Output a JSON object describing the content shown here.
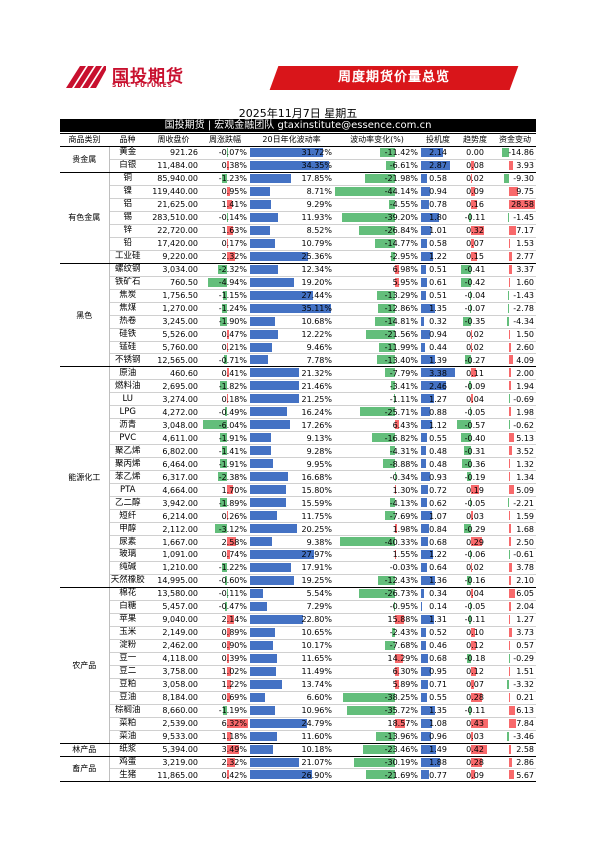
{
  "brand": {
    "name_cn": "国投期货",
    "name_en": "SDIC FUTURES"
  },
  "banner": "周度期货价量总览",
  "date": "2025年11月7日 星期五",
  "subheader": "国投期货 | 宏观金融团队 gtaxinstitute@essence.com.cn",
  "colors": {
    "blue": "#4472c4",
    "green": "#63be7b",
    "red": "#f8696b",
    "header_bg": "#000000",
    "banner": "#d9151a"
  },
  "columns": [
    "商品类别",
    "品种",
    "周收盘价",
    "周涨跌幅",
    "20日年化波动率",
    "波动率变化(%)",
    "投机度",
    "趋势度",
    "资金变动"
  ],
  "categories": [
    {
      "name": "贵金属",
      "rows": [
        [
          "黄金",
          "921.26",
          "-0.07%",
          "31.72%",
          "-11.42%",
          "2.14",
          "0.00",
          "-14.86"
        ],
        [
          "白银",
          "11,484.00",
          "0.38%",
          "34.35%",
          "-6.61%",
          "2.87",
          "0.08",
          "3.93"
        ]
      ]
    },
    {
      "name": "有色金属",
      "rows": [
        [
          "铜",
          "85,940.00",
          "-1.23%",
          "17.85%",
          "-21.98%",
          "0.58",
          "0.02",
          "-9.30"
        ],
        [
          "镍",
          "119,440.00",
          "0.95%",
          "8.71%",
          "-44.14%",
          "0.94",
          "0.09",
          "9.75"
        ],
        [
          "铝",
          "21,625.00",
          "1.41%",
          "9.29%",
          "-4.55%",
          "0.78",
          "0.16",
          "28.58"
        ],
        [
          "锡",
          "283,510.00",
          "-0.14%",
          "11.93%",
          "-39.20%",
          "1.80",
          "-0.11",
          "-1.45"
        ],
        [
          "锌",
          "22,720.00",
          "1.63%",
          "8.52%",
          "-26.84%",
          "1.01",
          "0.32",
          "7.17"
        ],
        [
          "铅",
          "17,420.00",
          "0.17%",
          "10.79%",
          "-14.77%",
          "0.58",
          "0.07",
          "1.53"
        ],
        [
          "工业硅",
          "9,220.00",
          "2.32%",
          "25.36%",
          "-2.95%",
          "1.22",
          "0.15",
          "2.77"
        ]
      ]
    },
    {
      "name": "黑色",
      "rows": [
        [
          "螺纹钢",
          "3,034.00",
          "-2.32%",
          "12.34%",
          "6.98%",
          "0.51",
          "-0.41",
          "3.37"
        ],
        [
          "铁矿石",
          "760.50",
          "-4.94%",
          "19.20%",
          "5.95%",
          "0.61",
          "-0.42",
          "1.60"
        ],
        [
          "焦炭",
          "1,756.50",
          "-1.15%",
          "27.44%",
          "-13.29%",
          "0.51",
          "-0.04",
          "-1.43"
        ],
        [
          "焦煤",
          "1,270.00",
          "-1.24%",
          "35.11%",
          "-12.86%",
          "1.35",
          "-0.07",
          "-2.78"
        ],
        [
          "热卷",
          "3,245.00",
          "-1.90%",
          "10.68%",
          "-14.81%",
          "0.32",
          "-0.35",
          "-4.34"
        ],
        [
          "硅铁",
          "5,526.00",
          "0.47%",
          "12.22%",
          "-21.56%",
          "0.94",
          "0.02",
          "1.50"
        ],
        [
          "锰硅",
          "5,760.00",
          "0.21%",
          "9.46%",
          "-11.99%",
          "0.44",
          "0.02",
          "2.60"
        ],
        [
          "不锈钢",
          "12,565.00",
          "-0.71%",
          "7.78%",
          "-13.40%",
          "1.39",
          "-0.27",
          "4.09"
        ]
      ]
    },
    {
      "name": "能源化工",
      "rows": [
        [
          "原油",
          "460.60",
          "0.41%",
          "21.32%",
          "-7.79%",
          "3.38",
          "0.11",
          "2.00"
        ],
        [
          "燃料油",
          "2,695.00",
          "-1.82%",
          "21.46%",
          "-3.41%",
          "2.46",
          "-0.09",
          "1.94"
        ],
        [
          "LU",
          "3,274.00",
          "0.18%",
          "21.25%",
          "-1.11%",
          "1.27",
          "0.04",
          "-0.69"
        ],
        [
          "LPG",
          "4,272.00",
          "-0.49%",
          "16.24%",
          "-25.71%",
          "0.88",
          "-0.05",
          "1.98"
        ],
        [
          "沥青",
          "3,048.00",
          "-6.04%",
          "17.26%",
          "6.43%",
          "1.12",
          "-0.57",
          "-0.62"
        ],
        [
          "PVC",
          "4,611.00",
          "-1.91%",
          "9.13%",
          "-16.82%",
          "0.55",
          "-0.40",
          "5.13"
        ],
        [
          "聚乙烯",
          "6,802.00",
          "-1.41%",
          "9.28%",
          "-4.31%",
          "0.48",
          "-0.31",
          "3.52"
        ],
        [
          "聚丙烯",
          "6,464.00",
          "-1.91%",
          "9.95%",
          "-8.88%",
          "0.48",
          "-0.36",
          "1.32"
        ],
        [
          "苯乙烯",
          "6,317.00",
          "-2.38%",
          "16.68%",
          "-0.34%",
          "0.93",
          "-0.19",
          "1.34"
        ],
        [
          "PTA",
          "4,664.00",
          "1.70%",
          "15.80%",
          "1.30%",
          "0.72",
          "0.19",
          "5.09"
        ],
        [
          "乙二醇",
          "3,942.00",
          "-1.89%",
          "15.59%",
          "-4.13%",
          "0.62",
          "-0.05",
          "-2.21"
        ],
        [
          "短纤",
          "6,214.00",
          "0.26%",
          "11.75%",
          "-7.69%",
          "1.07",
          "0.03",
          "1.59"
        ],
        [
          "甲醇",
          "2,112.00",
          "-3.12%",
          "20.25%",
          "1.98%",
          "0.84",
          "-0.29",
          "1.68"
        ],
        [
          "尿素",
          "1,667.00",
          "2.58%",
          "9.38%",
          "-40.33%",
          "0.68",
          "0.29",
          "2.50"
        ],
        [
          "玻璃",
          "1,091.00",
          "0.74%",
          "27.97%",
          "1.55%",
          "1.22",
          "-0.06",
          "-0.61"
        ],
        [
          "纯碱",
          "1,210.00",
          "-1.22%",
          "17.91%",
          "-0.03%",
          "0.64",
          "0.02",
          "3.78"
        ],
        [
          "天然橡胶",
          "14,995.00",
          "-0.60%",
          "19.25%",
          "-12.43%",
          "1.36",
          "-0.16",
          "2.10"
        ]
      ]
    },
    {
      "name": "农产品",
      "rows": [
        [
          "棉花",
          "13,580.00",
          "-0.11%",
          "5.54%",
          "-26.73%",
          "0.34",
          "0.04",
          "6.05"
        ],
        [
          "白糖",
          "5,457.00",
          "-0.47%",
          "7.29%",
          "-0.95%",
          "0.14",
          "-0.05",
          "2.04"
        ],
        [
          "苹果",
          "9,040.00",
          "2.14%",
          "22.80%",
          "15.88%",
          "1.31",
          "-0.11",
          "1.27"
        ],
        [
          "玉米",
          "2,149.00",
          "0.89%",
          "10.65%",
          "-2.43%",
          "0.52",
          "0.10",
          "3.73"
        ],
        [
          "淀粉",
          "2,462.00",
          "0.90%",
          "10.17%",
          "-7.68%",
          "0.46",
          "0.12",
          "0.57"
        ],
        [
          "豆一",
          "4,118.00",
          "0.39%",
          "11.65%",
          "14.29%",
          "0.68",
          "-0.18",
          "-0.29"
        ],
        [
          "豆二",
          "3,758.00",
          "1.02%",
          "11.49%",
          "6.30%",
          "0.95",
          "0.12",
          "1.51"
        ],
        [
          "豆粕",
          "3,058.00",
          "1.22%",
          "13.74%",
          "5.89%",
          "0.71",
          "0.07",
          "-3.32"
        ],
        [
          "豆油",
          "8,184.00",
          "0.69%",
          "6.60%",
          "-38.25%",
          "0.55",
          "0.28",
          "0.21"
        ],
        [
          "棕榈油",
          "8,660.00",
          "-1.19%",
          "10.96%",
          "-35.72%",
          "1.35",
          "-0.11",
          "6.13"
        ],
        [
          "菜粕",
          "2,539.00",
          "6.32%",
          "24.79%",
          "18.57%",
          "1.08",
          "0.43",
          "7.84"
        ],
        [
          "菜油",
          "9,533.00",
          "1.18%",
          "11.60%",
          "-13.96%",
          "0.96",
          "0.03",
          "-3.46"
        ]
      ]
    },
    {
      "name": "林产品",
      "rows": [
        [
          "纸浆",
          "5,394.00",
          "3.49%",
          "10.18%",
          "-23.46%",
          "1.49",
          "0.42",
          "2.58"
        ]
      ]
    },
    {
      "name": "畜产品",
      "rows": [
        [
          "鸡蛋",
          "3,219.00",
          "2.32%",
          "21.07%",
          "-30.19%",
          "1.88",
          "0.28",
          "2.86"
        ],
        [
          "生猪",
          "11,865.00",
          "0.42%",
          "26.90%",
          "-21.69%",
          "0.77",
          "0.09",
          "5.67"
        ]
      ]
    }
  ]
}
